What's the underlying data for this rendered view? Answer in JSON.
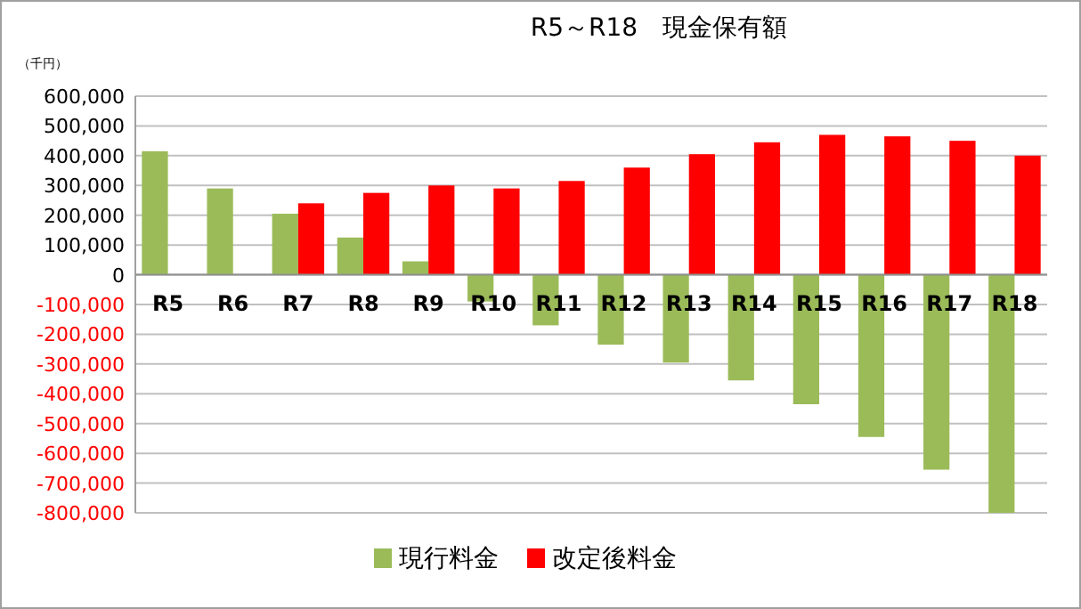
{
  "chart_data": {
    "type": "bar",
    "title": "R5～R18　現金保有額",
    "ylabel": "（千円）",
    "categories": [
      "R5",
      "R6",
      "R7",
      "R8",
      "R9",
      "R10",
      "R11",
      "R12",
      "R13",
      "R14",
      "R15",
      "R16",
      "R17",
      "R18"
    ],
    "series": [
      {
        "name": "現行料金",
        "color": "#9bbb59",
        "values": [
          415000,
          290000,
          205000,
          125000,
          45000,
          -90000,
          -170000,
          -235000,
          -295000,
          -355000,
          -435000,
          -545000,
          -655000,
          -800000
        ]
      },
      {
        "name": "改定後料金",
        "color": "#ff0000",
        "values": [
          null,
          null,
          240000,
          275000,
          300000,
          290000,
          315000,
          360000,
          405000,
          445000,
          470000,
          465000,
          450000,
          400000
        ]
      }
    ],
    "ylim": [
      -800000,
      600000
    ],
    "yticks": [
      {
        "value": -800000,
        "label": "-800,000"
      },
      {
        "value": -700000,
        "label": "-700,000"
      },
      {
        "value": -600000,
        "label": "-600,000"
      },
      {
        "value": -500000,
        "label": "-500,000"
      },
      {
        "value": -400000,
        "label": "-400,000"
      },
      {
        "value": -300000,
        "label": "-300,000"
      },
      {
        "value": -200000,
        "label": "-200,000"
      },
      {
        "value": -100000,
        "label": "-100,000"
      },
      0,
      {
        "value": 100000,
        "label": "100,000"
      },
      {
        "value": 200000,
        "label": "200,000"
      },
      {
        "value": 300000,
        "label": "300,000"
      },
      {
        "value": 400000,
        "label": "400,000"
      },
      {
        "value": 500000,
        "label": "500,000"
      },
      {
        "value": 600000,
        "label": "600,000"
      }
    ],
    "grid": "y",
    "legend": "bottom"
  }
}
